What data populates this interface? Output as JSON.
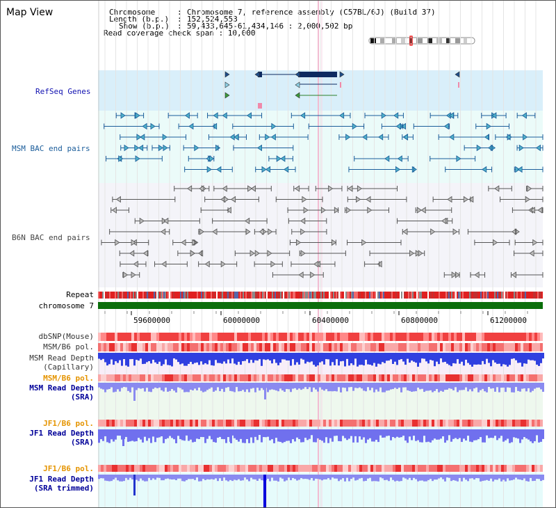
{
  "title": "Map View",
  "header": {
    "chromosome_label": "Chromosome",
    "chromosome_value": "Chromosome 7, reference assembly (C57BL/6J) (Build 37)",
    "length_label": "Length (b.p.)",
    "length_value": "152,524,553",
    "show_label": "Show (b.p.)",
    "show_value": "59,433,645-61,434,146 : 2,000,502 bp",
    "read_coverage": "Read coverage check span : 10,000"
  },
  "tracks": {
    "refseq": "RefSeq Genes",
    "msm_bac": "MSM BAC end pairs",
    "b6n_bac": "B6N BAC end pairs",
    "repeat": "Repeat",
    "chromosome": "chromosome 7",
    "dbsnp": "dbSNP(Mouse)",
    "msm_b6_pol_1": "MSM/B6 pol.",
    "msm_depth_cap": "MSM Read Depth\n(Capillary)",
    "msm_b6_pol_2": "MSM/B6 pol.",
    "msm_depth_sra": "MSM Read Depth\n(SRA)",
    "jf1_b6_pol_1": "JF1/B6 pol.",
    "jf1_depth_sra": "JF1 Read Depth\n(SRA)",
    "jf1_b6_pol_2": "JF1/B6 pol.",
    "jf1_depth_trim": "JF1 Read Depth\n(SRA trimmed)"
  },
  "axis": {
    "ticks": [
      "59600000",
      "60000000",
      "60400000",
      "60800000",
      "61200000"
    ]
  },
  "colors": {
    "refseq_bg": "#d9effa",
    "msm_bac_bg": "#ebfbf9",
    "b6n_bg": "#f4f4f9",
    "msm_label": "#1a5c9a",
    "b6n_label": "#444",
    "navy_label": "#000099",
    "orange_label": "#e59400",
    "chromosome_green": "#0a6e0a",
    "depth_blue": "#2222dd",
    "depth_light": "#8888ee"
  }
}
